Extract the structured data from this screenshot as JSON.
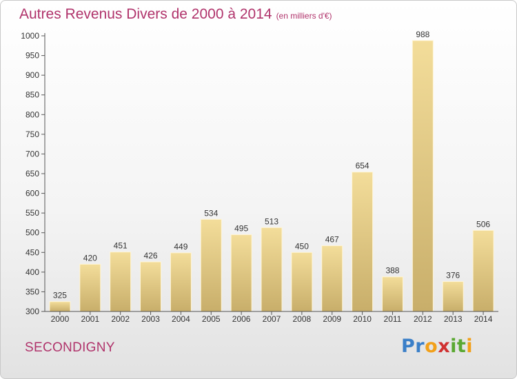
{
  "header": {
    "title": "Autres Revenus Divers de 2000 à 2014",
    "unit": "(en milliers d'€)"
  },
  "footer": {
    "commune": "SECONDIGNY",
    "logo_letters": [
      {
        "ch": "P",
        "color": "#3a7fc8"
      },
      {
        "ch": "r",
        "color": "#3a7fc8"
      },
      {
        "ch": "o",
        "color": "#f2a019"
      },
      {
        "ch": "x",
        "color": "#d03030"
      },
      {
        "ch": "i",
        "color": "#5aa832"
      },
      {
        "ch": "t",
        "color": "#5aa832"
      },
      {
        "ch": "i",
        "color": "#f2a019"
      }
    ]
  },
  "colors": {
    "bar_light": "#f3dd9a",
    "bar_dark": "#c8ae6a",
    "title": "#b0336b"
  },
  "chart_data": {
    "type": "bar",
    "title": "Autres Revenus Divers de 2000 à 2014",
    "subtitle": "(en milliers d'€)",
    "xlabel": "",
    "ylabel": "",
    "ylim": [
      300,
      1000
    ],
    "yticks": [
      300,
      350,
      400,
      450,
      500,
      550,
      600,
      650,
      700,
      750,
      800,
      850,
      900,
      950,
      1000
    ],
    "categories": [
      "2000",
      "2001",
      "2002",
      "2003",
      "2004",
      "2005",
      "2006",
      "2007",
      "2008",
      "2009",
      "2010",
      "2011",
      "2012",
      "2013",
      "2014"
    ],
    "values": [
      325,
      420,
      451,
      426,
      449,
      534,
      495,
      513,
      450,
      467,
      654,
      388,
      988,
      376,
      506
    ],
    "grid": false,
    "data_labels": true
  }
}
